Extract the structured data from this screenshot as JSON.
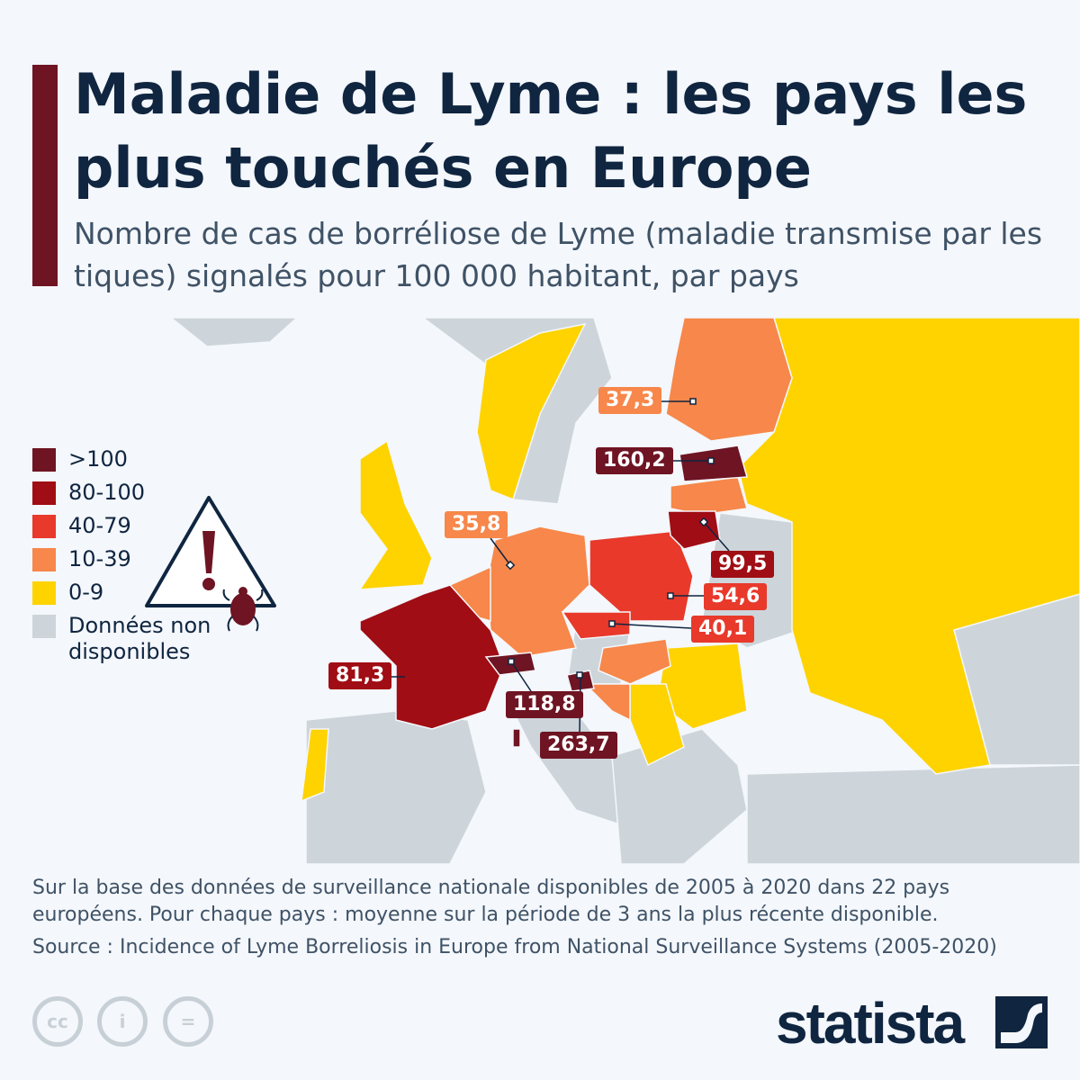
{
  "header": {
    "title": "Maladie de Lyme : les pays les plus touchés en Europe",
    "subtitle": "Nombre de cas de borréliose de Lyme (maladie transmise par les tiques) signalés pour 100 000 habitant, par pays"
  },
  "legend": [
    {
      "label": ">100",
      "color": "#6e1423"
    },
    {
      "label": "80-100",
      "color": "#a00d14"
    },
    {
      "label": "40-79",
      "color": "#e8392b"
    },
    {
      "label": "10-39",
      "color": "#f7874a"
    },
    {
      "label": "0-9",
      "color": "#fed300"
    },
    {
      "label": "Données non disponibles",
      "color": "#cdd5db"
    }
  ],
  "icons": {
    "warning": "warning-triangle-tick-icon"
  },
  "map_labels": [
    {
      "country": "Finlande",
      "value": "37,3",
      "color": "#f7874a"
    },
    {
      "country": "Estonie",
      "value": "160,2",
      "color": "#6e1423"
    },
    {
      "country": "Pays-Bas",
      "value": "35,8",
      "color": "#f7874a"
    },
    {
      "country": "Lituanie",
      "value": "99,5",
      "color": "#a00d14"
    },
    {
      "country": "Pologne",
      "value": "54,6",
      "color": "#e8392b"
    },
    {
      "country": "Tchéquie",
      "value": "40,1",
      "color": "#e8392b"
    },
    {
      "country": "France",
      "value": "81,3",
      "color": "#a00d14"
    },
    {
      "country": "Suisse",
      "value": "118,8",
      "color": "#6e1423"
    },
    {
      "country": "Slovénie",
      "value": "263,7",
      "color": "#6e1423"
    }
  ],
  "footer": {
    "note": "Sur la base des données de surveillance nationale disponibles de 2005 à 2020 dans 22 pays européens. Pour chaque pays : moyenne sur la période de 3 ans la plus récente disponible.",
    "source": "Source : Incidence of Lyme Borreliosis in Europe from National Surveillance Systems (2005-2020)",
    "brand": "statista"
  }
}
